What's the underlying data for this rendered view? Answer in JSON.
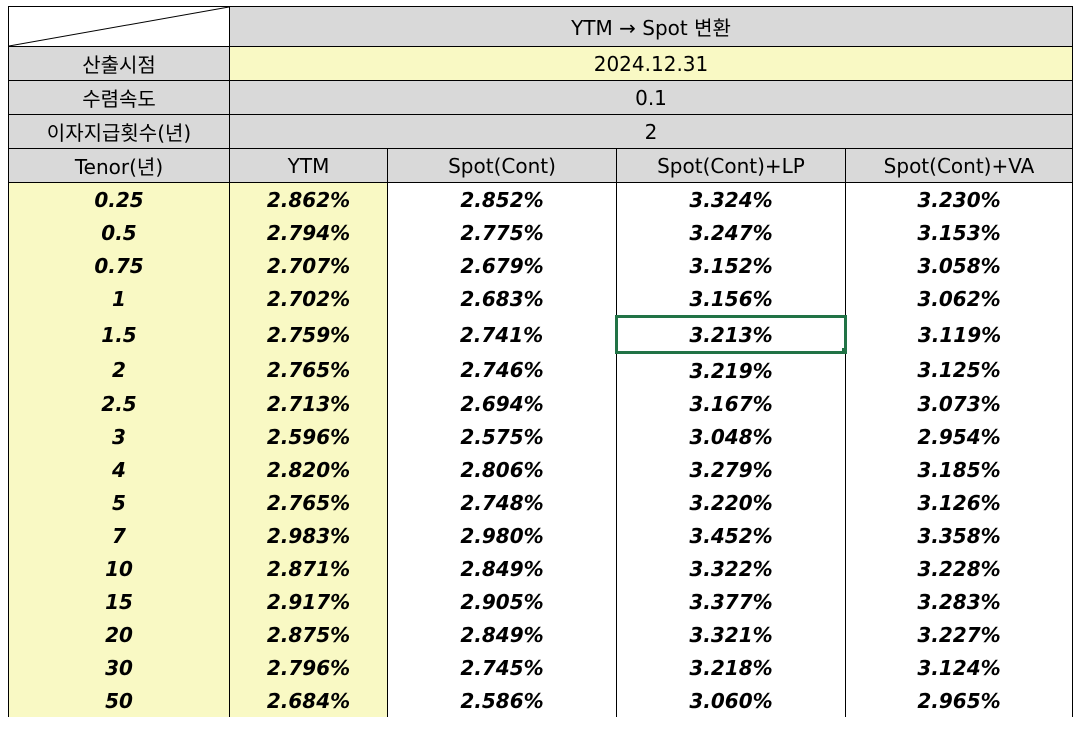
{
  "sheet": {
    "title": "YTM → Spot 변환",
    "params": [
      {
        "label": "산출시점",
        "value": "2024.12.31"
      },
      {
        "label": "수렴속도",
        "value": "0.1"
      },
      {
        "label": "이자지급횟수(년)",
        "value": "2"
      }
    ],
    "headers": [
      "Tenor(년)",
      "YTM",
      "Spot(Cont)",
      "Spot(Cont)+LP",
      "Spot(Cont)+VA"
    ],
    "rows": [
      [
        "0.25",
        "2.862%",
        "2.852%",
        "3.324%",
        "3.230%"
      ],
      [
        "0.5",
        "2.794%",
        "2.775%",
        "3.247%",
        "3.153%"
      ],
      [
        "0.75",
        "2.707%",
        "2.679%",
        "3.152%",
        "3.058%"
      ],
      [
        "1",
        "2.702%",
        "2.683%",
        "3.156%",
        "3.062%"
      ],
      [
        "1.5",
        "2.759%",
        "2.741%",
        "3.213%",
        "3.119%"
      ],
      [
        "2",
        "2.765%",
        "2.746%",
        "3.219%",
        "3.125%"
      ],
      [
        "2.5",
        "2.713%",
        "2.694%",
        "3.167%",
        "3.073%"
      ],
      [
        "3",
        "2.596%",
        "2.575%",
        "3.048%",
        "2.954%"
      ],
      [
        "4",
        "2.820%",
        "2.806%",
        "3.279%",
        "3.185%"
      ],
      [
        "5",
        "2.765%",
        "2.748%",
        "3.220%",
        "3.126%"
      ],
      [
        "7",
        "2.983%",
        "2.980%",
        "3.452%",
        "3.358%"
      ],
      [
        "10",
        "2.871%",
        "2.849%",
        "3.322%",
        "3.228%"
      ],
      [
        "15",
        "2.917%",
        "2.905%",
        "3.377%",
        "3.283%"
      ],
      [
        "20",
        "2.875%",
        "2.849%",
        "3.321%",
        "3.227%"
      ],
      [
        "30",
        "2.796%",
        "2.745%",
        "3.218%",
        "3.124%"
      ],
      [
        "50",
        "2.684%",
        "2.586%",
        "3.060%",
        "2.965%"
      ]
    ],
    "selected_cell": {
      "row": 4,
      "col": 3
    },
    "colors": {
      "header_gray": "#d9d9d9",
      "highlight_yellow": "#f9f9c4",
      "selection_green": "#217346"
    }
  }
}
